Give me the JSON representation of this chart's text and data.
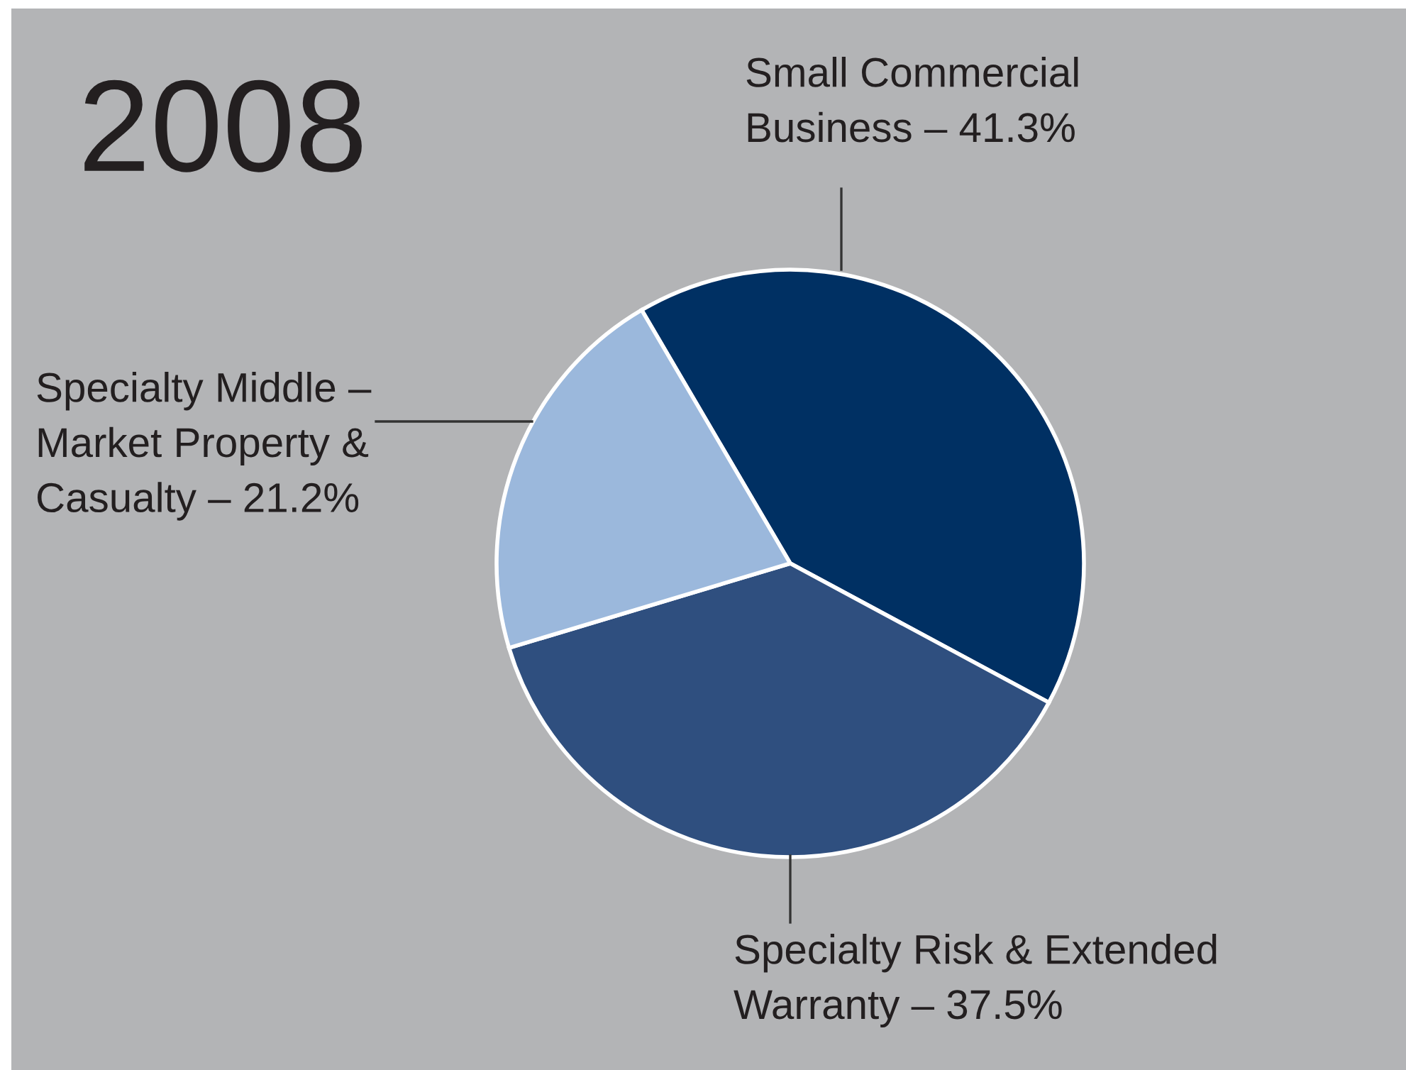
{
  "chart_data": {
    "type": "pie",
    "title": "2008",
    "categories": [
      "Small Commercial\nBusiness – 41.3%",
      "Specialty Risk & Extended\nWarranty – 37.5%",
      "Specialty Middle –\nMarket Property &\nCasualty – 21.2%"
    ],
    "values": [
      41.3,
      37.5,
      21.2
    ],
    "colors": [
      "#003063",
      "#2f4f7f",
      "#9bb8dc"
    ],
    "legend": false
  }
}
